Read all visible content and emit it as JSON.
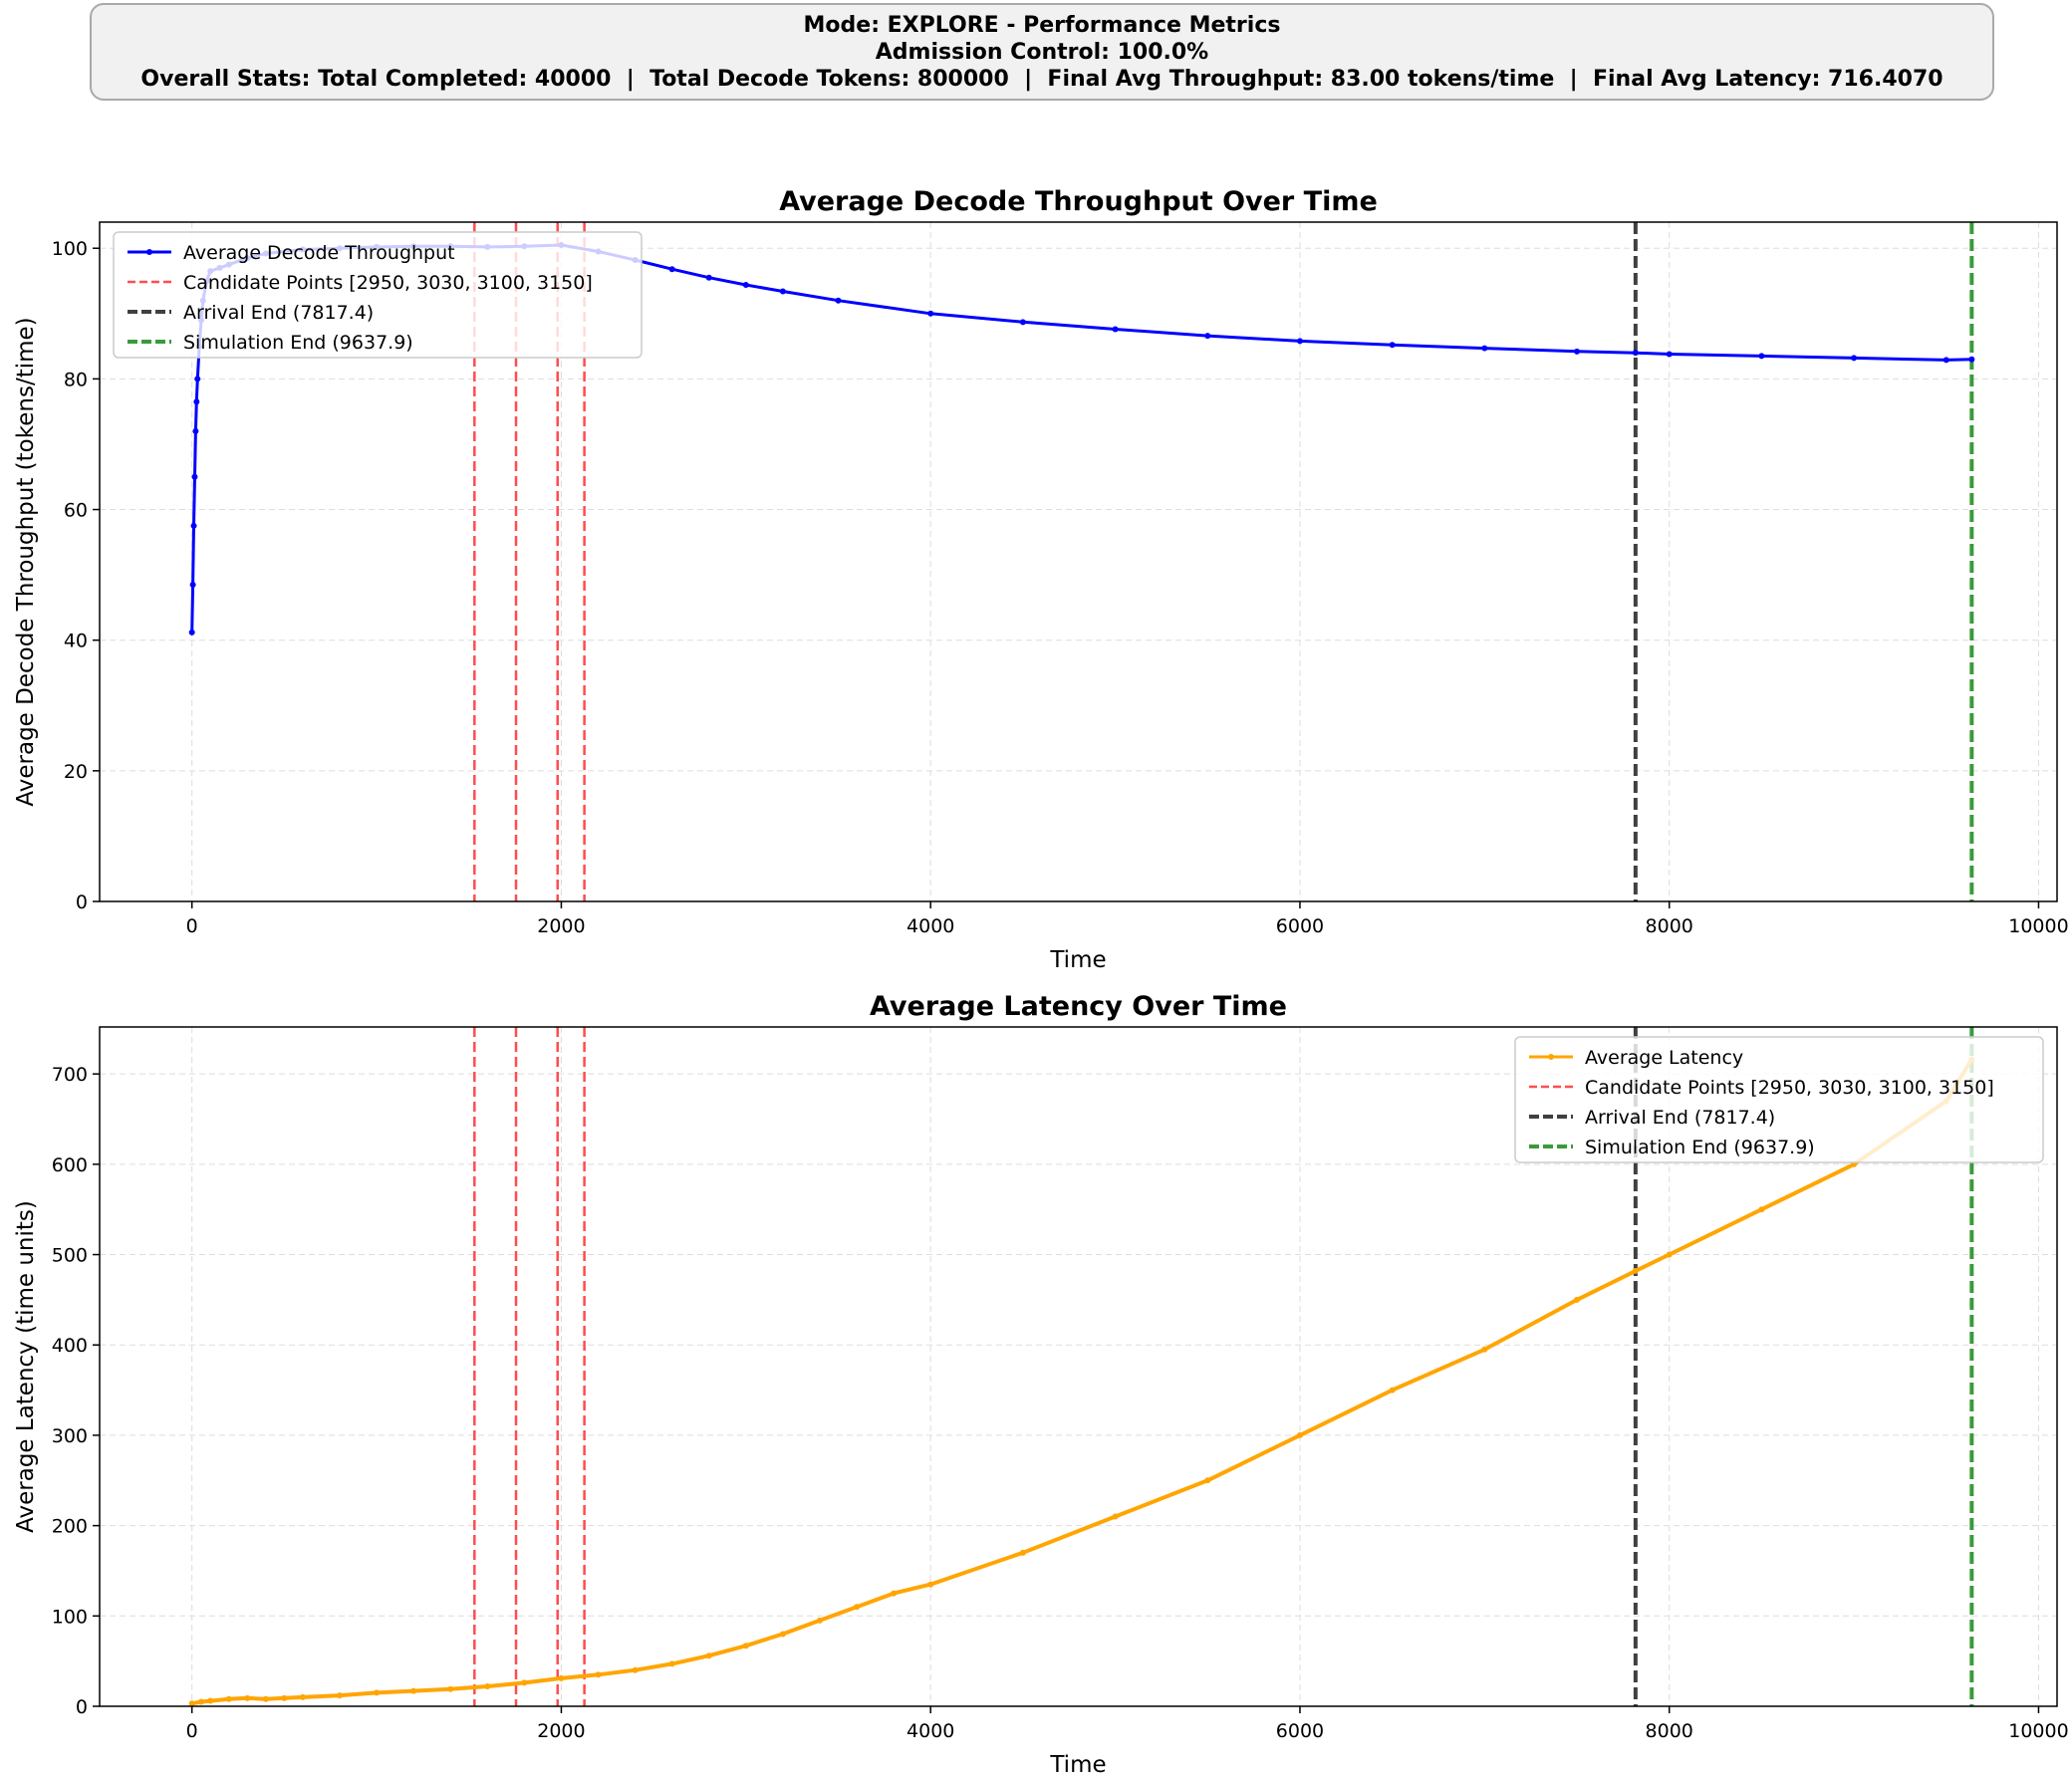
{
  "header": {
    "line1": "Mode: EXPLORE - Performance Metrics",
    "line2": "Admission Control: 100.0%",
    "line3": "Overall Stats: Total Completed: 40000  |  Total Decode Tokens: 800000  |  Final Avg Throughput: 83.00 tokens/time  |  Final Avg Latency: 716.4070"
  },
  "colors": {
    "throughput": "#0000ff",
    "latency": "#ffa500",
    "candidate": "#ff4d4d",
    "arrival": "#404040",
    "simulation": "#3a9a3a"
  },
  "chart_data": [
    {
      "type": "line",
      "title": "Average Decode Throughput Over Time",
      "xlabel": "Time",
      "ylabel": "Average Decode Throughput (tokens/time)",
      "xlim": [
        -500,
        10100
      ],
      "ylim": [
        0,
        104
      ],
      "xticks": [
        0,
        2000,
        4000,
        6000,
        8000,
        10000
      ],
      "yticks": [
        0,
        20,
        40,
        60,
        80,
        100
      ],
      "grid": true,
      "legend_position": "top-left",
      "legend": [
        "Average Decode Throughput",
        "Candidate Points [2950, 3030, 3100, 3150]",
        "Arrival End (7817.4)",
        "Simulation End (9637.9)"
      ],
      "candidate_lines_x": [
        1530,
        1755,
        1980,
        2125
      ],
      "arrival_end_x": 7817.4,
      "simulation_end_x": 9637.9,
      "series": [
        {
          "name": "Average Decode Throughput",
          "x": [
            0,
            5,
            10,
            15,
            20,
            25,
            30,
            40,
            50,
            60,
            80,
            100,
            150,
            200,
            300,
            400,
            600,
            800,
            1000,
            1200,
            1400,
            1600,
            1800,
            2000,
            2200,
            2400,
            2600,
            2800,
            3000,
            3200,
            3500,
            4000,
            4500,
            5000,
            5500,
            6000,
            6500,
            7000,
            7500,
            7817.4,
            8000,
            8500,
            9000,
            9500,
            9637.9
          ],
          "y": [
            41.2,
            48.5,
            57.5,
            65.0,
            72.0,
            76.5,
            80.0,
            85.0,
            89.0,
            92.0,
            95.0,
            96.5,
            97.0,
            97.5,
            98.5,
            99.2,
            99.8,
            100.0,
            100.2,
            100.3,
            100.3,
            100.2,
            100.3,
            100.5,
            99.5,
            98.2,
            96.8,
            95.5,
            94.4,
            93.4,
            92.0,
            90.0,
            88.7,
            87.6,
            86.6,
            85.8,
            85.2,
            84.7,
            84.2,
            84.0,
            83.8,
            83.5,
            83.2,
            82.9,
            83.0
          ]
        }
      ]
    },
    {
      "type": "line",
      "title": "Average Latency Over Time",
      "xlabel": "Time",
      "ylabel": "Average Latency (time units)",
      "xlim": [
        -500,
        10100
      ],
      "ylim": [
        0,
        752
      ],
      "xticks": [
        0,
        2000,
        4000,
        6000,
        8000,
        10000
      ],
      "yticks": [
        0,
        100,
        200,
        300,
        400,
        500,
        600,
        700
      ],
      "grid": true,
      "legend_position": "top-right",
      "legend": [
        "Average Latency",
        "Candidate Points [2950, 3030, 3100, 3150]",
        "Arrival End (7817.4)",
        "Simulation End (9637.9)"
      ],
      "candidate_lines_x": [
        1530,
        1755,
        1980,
        2125
      ],
      "arrival_end_x": 7817.4,
      "simulation_end_x": 9637.9,
      "series": [
        {
          "name": "Average Latency",
          "x": [
            0,
            50,
            100,
            200,
            300,
            400,
            500,
            600,
            800,
            1000,
            1200,
            1400,
            1600,
            1800,
            2000,
            2200,
            2400,
            2600,
            2800,
            3000,
            3200,
            3400,
            3600,
            3800,
            4000,
            4500,
            5000,
            5500,
            6000,
            6500,
            7000,
            7500,
            7817.4,
            8000,
            8500,
            9000,
            9500,
            9637.9
          ],
          "y": [
            3,
            5,
            6,
            8,
            9,
            8,
            9,
            10,
            12,
            15,
            17,
            19,
            22,
            26,
            31,
            35,
            40,
            47,
            56,
            67,
            80,
            95,
            110,
            125,
            135,
            170,
            210,
            250,
            300,
            350,
            395,
            450,
            482,
            500,
            550,
            600,
            670,
            716
          ]
        }
      ]
    }
  ]
}
